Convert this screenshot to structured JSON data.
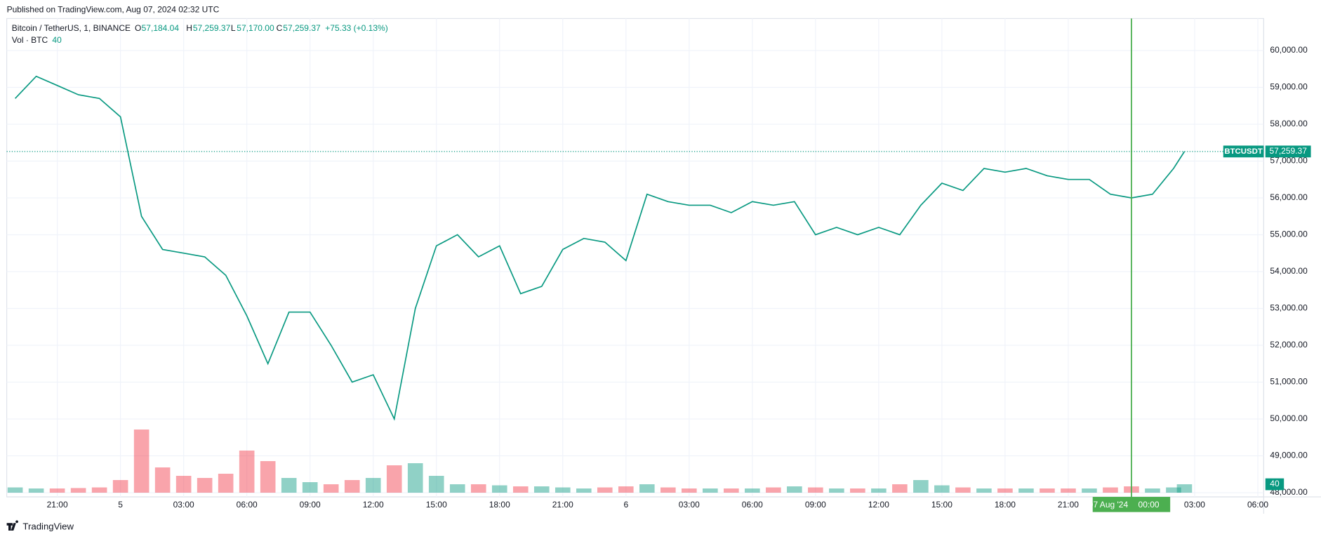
{
  "header": {
    "published": "Published on TradingView.com, Aug 07, 2024 02:32 UTC"
  },
  "footer": {
    "brand": "TradingView"
  },
  "chart_data": {
    "type": "line",
    "title": "Bitcoin / TetherUS, 1, BINANCE",
    "ohlc": {
      "o_key": "O",
      "open": "57,184.04",
      "h_key": "H",
      "high": "57,259.37",
      "l_key": "L",
      "low": "57,170.00",
      "c_key": "C",
      "close": "57,259.37",
      "change": "+75.33 (+0.13%)"
    },
    "x": [
      "2024-08-04T19:00",
      "2024-08-04T20:00",
      "2024-08-04T21:00",
      "2024-08-04T22:00",
      "2024-08-04T23:00",
      "2024-08-05T00:00",
      "2024-08-05T01:00",
      "2024-08-05T02:00",
      "2024-08-05T03:00",
      "2024-08-05T04:00",
      "2024-08-05T05:00",
      "2024-08-05T06:00",
      "2024-08-05T07:00",
      "2024-08-05T08:00",
      "2024-08-05T09:00",
      "2024-08-05T10:00",
      "2024-08-05T11:00",
      "2024-08-05T12:00",
      "2024-08-05T13:00",
      "2024-08-05T14:00",
      "2024-08-05T15:00",
      "2024-08-05T16:00",
      "2024-08-05T17:00",
      "2024-08-05T18:00",
      "2024-08-05T19:00",
      "2024-08-05T20:00",
      "2024-08-05T21:00",
      "2024-08-05T22:00",
      "2024-08-05T23:00",
      "2024-08-06T00:00",
      "2024-08-06T01:00",
      "2024-08-06T02:00",
      "2024-08-06T03:00",
      "2024-08-06T04:00",
      "2024-08-06T05:00",
      "2024-08-06T06:00",
      "2024-08-06T07:00",
      "2024-08-06T08:00",
      "2024-08-06T09:00",
      "2024-08-06T10:00",
      "2024-08-06T11:00",
      "2024-08-06T12:00",
      "2024-08-06T13:00",
      "2024-08-06T14:00",
      "2024-08-06T15:00",
      "2024-08-06T16:00",
      "2024-08-06T17:00",
      "2024-08-06T18:00",
      "2024-08-06T19:00",
      "2024-08-06T20:00",
      "2024-08-06T21:00",
      "2024-08-06T22:00",
      "2024-08-06T23:00",
      "2024-08-07T00:00",
      "2024-08-07T01:00",
      "2024-08-07T02:00",
      "2024-08-07T02:31"
    ],
    "series": [
      {
        "name": "BTCUSDT",
        "color": "#089981",
        "down_color": "#f23645",
        "values": [
          58700,
          59300,
          59050,
          58800,
          58700,
          58200,
          55500,
          54600,
          54500,
          54400,
          53900,
          52800,
          51500,
          52900,
          52900,
          52000,
          51000,
          51200,
          50000,
          53000,
          54700,
          55000,
          54400,
          54700,
          53400,
          53600,
          54600,
          54900,
          54800,
          54300,
          56100,
          55900,
          55800,
          55800,
          55600,
          55900,
          55800,
          55900,
          55000,
          55200,
          55000,
          55200,
          55000,
          55800,
          56400,
          56200,
          56800,
          56700,
          56800,
          56600,
          56500,
          56500,
          56100,
          56000,
          56100,
          56800,
          57259.37
        ]
      },
      {
        "name": "Vol · BTC",
        "axis": "y2",
        "color": "#089981",
        "values": [
          25,
          20,
          20,
          22,
          25,
          60,
          300,
          120,
          80,
          70,
          90,
          200,
          150,
          70,
          50,
          40,
          60,
          70,
          130,
          140,
          80,
          40,
          40,
          35,
          30,
          30,
          25,
          20,
          25,
          30,
          40,
          25,
          20,
          20,
          20,
          20,
          25,
          30,
          25,
          20,
          20,
          20,
          40,
          60,
          35,
          25,
          20,
          20,
          20,
          20,
          20,
          20,
          25,
          30,
          20,
          25,
          40
        ]
      }
    ],
    "xlim": [
      "2024-08-04T18:36",
      "2024-08-07T06:36"
    ],
    "xticks": [
      {
        "value": "2024-08-04T21:00",
        "label": "21:00"
      },
      {
        "value": "2024-08-05T00:00",
        "label": "5"
      },
      {
        "value": "2024-08-05T03:00",
        "label": "03:00"
      },
      {
        "value": "2024-08-05T06:00",
        "label": "06:00"
      },
      {
        "value": "2024-08-05T09:00",
        "label": "09:00"
      },
      {
        "value": "2024-08-05T12:00",
        "label": "12:00"
      },
      {
        "value": "2024-08-05T15:00",
        "label": "15:00"
      },
      {
        "value": "2024-08-05T18:00",
        "label": "18:00"
      },
      {
        "value": "2024-08-05T21:00",
        "label": "21:00"
      },
      {
        "value": "2024-08-06T00:00",
        "label": "6"
      },
      {
        "value": "2024-08-06T03:00",
        "label": "03:00"
      },
      {
        "value": "2024-08-06T06:00",
        "label": "06:00"
      },
      {
        "value": "2024-08-06T09:00",
        "label": "09:00"
      },
      {
        "value": "2024-08-06T12:00",
        "label": "12:00"
      },
      {
        "value": "2024-08-06T15:00",
        "label": "15:00"
      },
      {
        "value": "2024-08-06T18:00",
        "label": "18:00"
      },
      {
        "value": "2024-08-06T21:00",
        "label": "21:00"
      },
      {
        "value": "2024-08-07T03:00",
        "label": "03:00"
      },
      {
        "value": "2024-08-07T06:00",
        "label": "06:00"
      }
    ],
    "ylim": [
      48000,
      60900
    ],
    "yticks": [
      {
        "value": 48000,
        "label": "48,000.00"
      },
      {
        "value": 49000,
        "label": "49,000.00"
      },
      {
        "value": 50000,
        "label": "50,000.00"
      },
      {
        "value": 51000,
        "label": "51,000.00"
      },
      {
        "value": 52000,
        "label": "52,000.00"
      },
      {
        "value": 53000,
        "label": "53,000.00"
      },
      {
        "value": 54000,
        "label": "54,000.00"
      },
      {
        "value": 55000,
        "label": "55,000.00"
      },
      {
        "value": 56000,
        "label": "56,000.00"
      },
      {
        "value": 57000,
        "label": "57,000.00"
      },
      {
        "value": 58000,
        "label": "58,000.00"
      },
      {
        "value": 59000,
        "label": "59,000.00"
      },
      {
        "value": 60000,
        "label": "60,000.00"
      }
    ],
    "y2lim": [
      0,
      620
    ],
    "grid": true,
    "crosshair": {
      "x": "2024-08-07T00:00",
      "date_label": "07 Aug '24",
      "time_label": "00:00",
      "color": "#4caf50"
    }
  }
}
